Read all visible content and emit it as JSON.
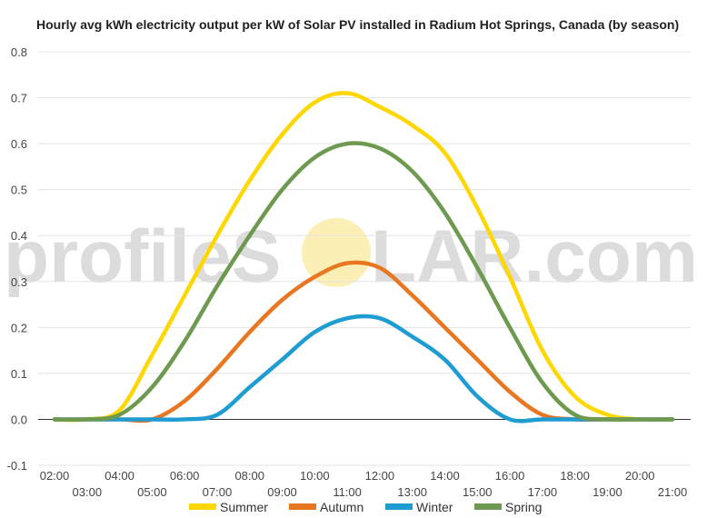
{
  "chart_data": {
    "type": "line",
    "title": "Hourly avg kWh electricity output per kW of Solar PV installed in Radium Hot Springs, Canada (by season)",
    "xlabel": "",
    "ylabel": "",
    "ylim": [
      -0.1,
      0.8
    ],
    "yticks": [
      -0.1,
      0.0,
      0.1,
      0.2,
      0.3,
      0.4,
      0.5,
      0.6,
      0.7,
      0.8
    ],
    "ytick_labels": [
      "-0.1",
      "0.0",
      "0.1",
      "0.2",
      "0.3",
      "0.4",
      "0.5",
      "0.6",
      "0.7",
      "0.8"
    ],
    "xtick_labels": [
      "02:00",
      "03:00",
      "04:00",
      "05:00",
      "06:00",
      "07:00",
      "08:00",
      "09:00",
      "10:00",
      "11:00",
      "12:00",
      "13:00",
      "14:00",
      "15:00",
      "16:00",
      "17:00",
      "18:00",
      "19:00",
      "20:00",
      "21:00"
    ],
    "x": [
      "02:00",
      "03:00",
      "04:00",
      "05:00",
      "06:00",
      "07:00",
      "08:00",
      "09:00",
      "10:00",
      "11:00",
      "12:00",
      "13:00",
      "14:00",
      "15:00",
      "16:00",
      "17:00",
      "18:00",
      "19:00",
      "20:00",
      "21:00"
    ],
    "grid": true,
    "legend_position": "bottom",
    "series": [
      {
        "name": "Summer",
        "color": "#FFD700",
        "values": [
          0.0,
          0.0,
          0.02,
          0.14,
          0.27,
          0.4,
          0.52,
          0.62,
          0.69,
          0.71,
          0.68,
          0.64,
          0.58,
          0.46,
          0.31,
          0.15,
          0.05,
          0.01,
          0.0,
          0.0
        ]
      },
      {
        "name": "Autumn",
        "color": "#E87722",
        "values": [
          0.0,
          0.0,
          0.0,
          0.0,
          0.04,
          0.11,
          0.19,
          0.26,
          0.31,
          0.34,
          0.33,
          0.27,
          0.2,
          0.13,
          0.06,
          0.01,
          0.0,
          0.0,
          0.0,
          0.0
        ]
      },
      {
        "name": "Winter",
        "color": "#1F9CD1",
        "values": [
          0.0,
          0.0,
          0.0,
          0.0,
          0.0,
          0.01,
          0.07,
          0.13,
          0.19,
          0.22,
          0.22,
          0.18,
          0.13,
          0.05,
          0.0,
          0.0,
          0.0,
          0.0,
          0.0,
          0.0
        ]
      },
      {
        "name": "Spring",
        "color": "#6E9A50",
        "values": [
          0.0,
          0.0,
          0.01,
          0.07,
          0.17,
          0.29,
          0.4,
          0.5,
          0.57,
          0.6,
          0.59,
          0.54,
          0.45,
          0.33,
          0.2,
          0.08,
          0.01,
          0.0,
          0.0,
          0.0
        ]
      }
    ]
  },
  "watermark": {
    "left": "profileS",
    "right": "LAR.com",
    "sun_color": "#F8E27A"
  }
}
